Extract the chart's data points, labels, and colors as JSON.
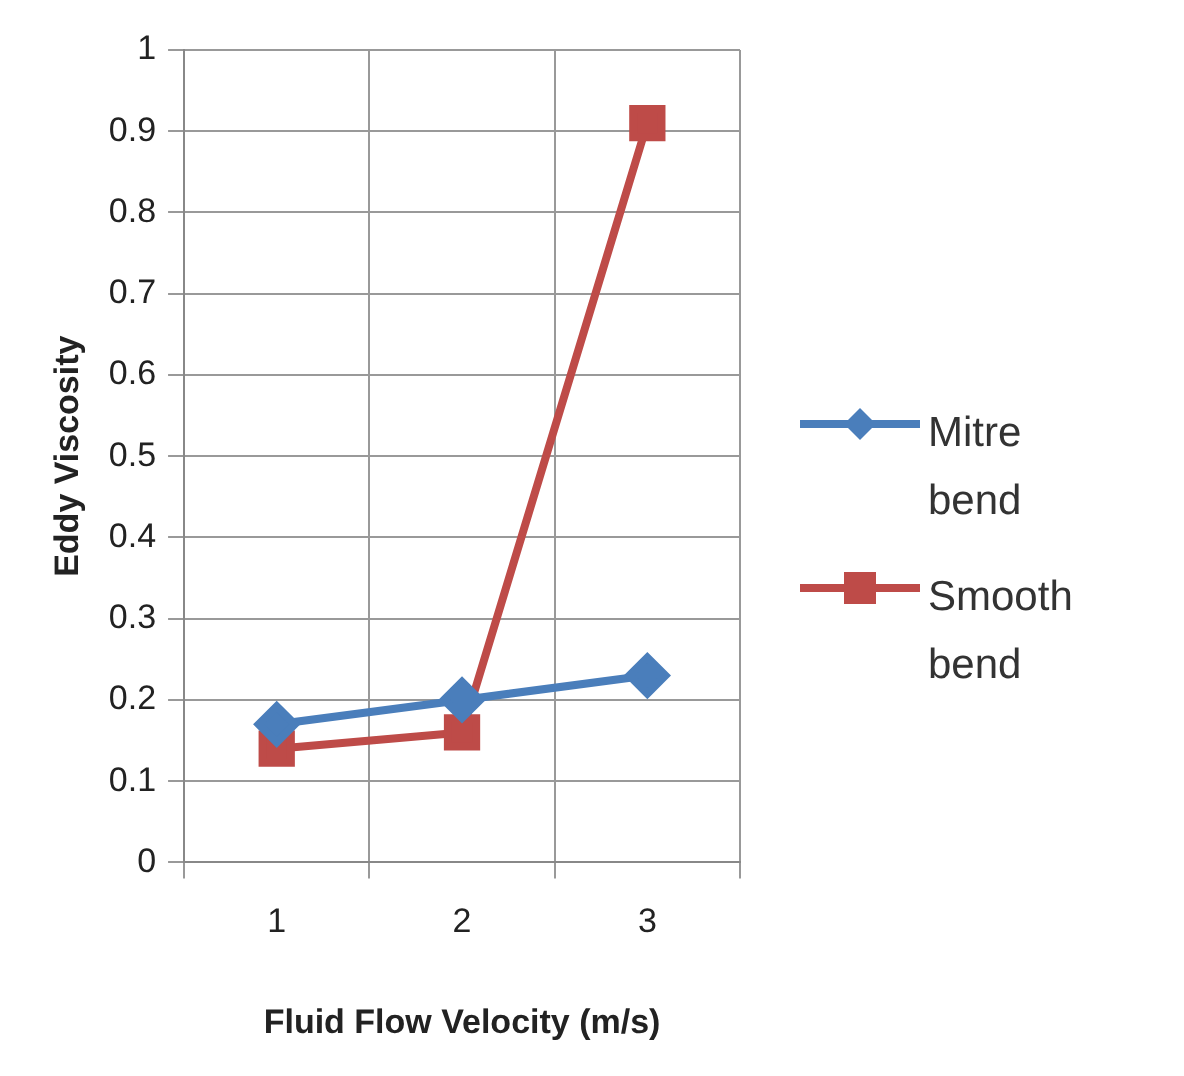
{
  "chart_data": {
    "type": "line",
    "xlabel": "Fluid Flow Velocity (m/s)",
    "ylabel": "Eddy Viscosity",
    "categories": [
      "1",
      "2",
      "3"
    ],
    "series": [
      {
        "name": "Mitre bend",
        "color": "#4a7ebb",
        "values": [
          0.17,
          0.2,
          0.23
        ],
        "marker": "diamond"
      },
      {
        "name": "Smooth bend",
        "color": "#be4b48",
        "values": [
          0.14,
          0.16,
          0.91
        ],
        "marker": "square"
      }
    ],
    "ylim": [
      0,
      1
    ],
    "yticks": [
      0,
      0.1,
      0.2,
      0.3,
      0.4,
      0.5,
      0.6,
      0.7,
      0.8,
      0.9,
      1
    ],
    "grid": true,
    "legend": "right",
    "line_style": "solid"
  }
}
